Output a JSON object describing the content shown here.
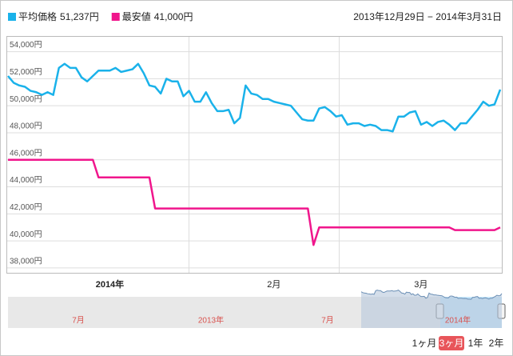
{
  "chart_data": {
    "type": "line",
    "date_range": "2013年12月29日 − 2014年3月31日",
    "categories": [
      null,
      null,
      null,
      null,
      null,
      null,
      null,
      null,
      null,
      null,
      null,
      null,
      null,
      null,
      null,
      null,
      null,
      null,
      "2014年",
      null,
      null,
      null,
      null,
      null,
      null,
      null,
      null,
      null,
      null,
      null,
      null,
      null,
      null,
      null,
      null,
      null,
      null,
      null,
      null,
      null,
      null,
      null,
      null,
      null,
      null,
      null,
      null,
      "2月",
      null,
      null,
      null,
      null,
      null,
      null,
      null,
      null,
      null,
      null,
      null,
      null,
      null,
      null,
      null,
      null,
      null,
      null,
      null,
      null,
      null,
      null,
      null,
      null,
      null,
      "3月",
      null,
      null,
      null,
      null,
      null,
      null,
      null,
      null,
      null,
      null,
      null,
      null,
      null,
      null
    ],
    "series": [
      {
        "name": "平均価格",
        "latest_label": "51,237円",
        "color": "#1ab2ea",
        "values": [
          52200,
          51700,
          51500,
          51400,
          51100,
          51000,
          50800,
          51000,
          50800,
          52800,
          53100,
          52800,
          52800,
          52100,
          51800,
          52200,
          52600,
          52600,
          52600,
          52800,
          52500,
          52600,
          52700,
          53100,
          52400,
          51500,
          51400,
          50900,
          52000,
          51800,
          51800,
          50700,
          51100,
          50300,
          50300,
          51000,
          50200,
          49600,
          49600,
          49700,
          48700,
          49100,
          51500,
          50900,
          50800,
          50500,
          50500,
          50300,
          50200,
          50100,
          50000,
          49500,
          49000,
          48900,
          48900,
          49800,
          49900,
          49600,
          49200,
          49300,
          48600,
          48700,
          48700,
          48500,
          48600,
          48500,
          48200,
          48200,
          48100,
          49200,
          49200,
          49500,
          49600,
          48600,
          48800,
          48500,
          48800,
          48900,
          48600,
          48200,
          48700,
          48700,
          49200,
          49700,
          50300,
          50000,
          50100,
          51200
        ]
      },
      {
        "name": "最安値",
        "latest_label": "41,000円",
        "color": "#f0168c",
        "values": [
          46000,
          46000,
          46000,
          46000,
          46000,
          46000,
          46000,
          46000,
          46000,
          46000,
          46000,
          46000,
          46000,
          46000,
          46000,
          46000,
          44700,
          44700,
          44700,
          44700,
          44700,
          44700,
          44700,
          44700,
          44700,
          44700,
          42400,
          42400,
          42400,
          42400,
          42400,
          42400,
          42400,
          42400,
          42400,
          42400,
          42400,
          42400,
          42400,
          42400,
          42400,
          42400,
          42400,
          42400,
          42400,
          42400,
          42400,
          42400,
          42400,
          42400,
          42400,
          42400,
          42400,
          42400,
          39700,
          41000,
          41000,
          41000,
          41000,
          41000,
          41000,
          41000,
          41000,
          41000,
          41000,
          41000,
          41000,
          41000,
          41000,
          41000,
          41000,
          41000,
          41000,
          41000,
          41000,
          41000,
          41000,
          41000,
          41000,
          40800,
          40800,
          40800,
          40800,
          40800,
          40800,
          40800,
          40800,
          41000
        ]
      }
    ],
    "ylim": [
      37700,
      55100
    ],
    "yticks": [
      {
        "value": 38000,
        "label": "38,000円"
      },
      {
        "value": 40000,
        "label": "40,000円"
      },
      {
        "value": 42000,
        "label": "42,000円"
      },
      {
        "value": 44000,
        "label": "44,000円"
      },
      {
        "value": 46000,
        "label": "46,000円"
      },
      {
        "value": 48000,
        "label": "48,000円"
      },
      {
        "value": 50000,
        "label": "50,000円"
      },
      {
        "value": 52000,
        "label": "52,000円"
      },
      {
        "value": 54000,
        "label": "54,000円"
      }
    ],
    "grid": true,
    "navigator_labels": [
      "7月",
      "2013年",
      "7月",
      "2014年"
    ],
    "range_buttons": [
      "1ヶ月",
      "3ヶ月",
      "1年",
      "2年"
    ],
    "selected_button": 1
  }
}
